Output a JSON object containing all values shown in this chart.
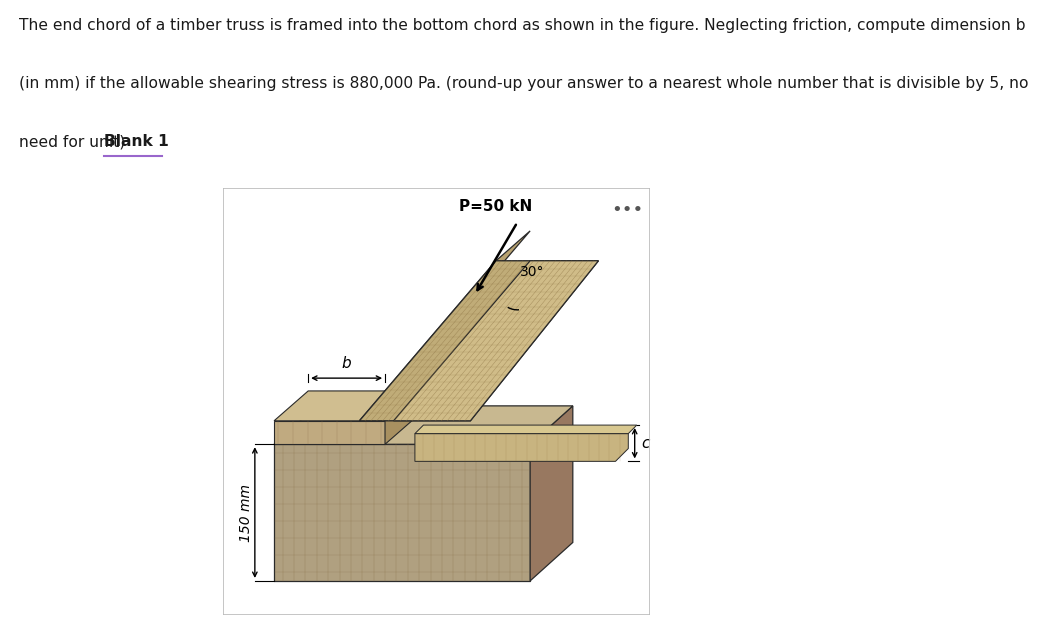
{
  "title_line1": "The end chord of a timber truss is framed into the bottom chord as shown in the figure. Neglecting friction, compute dimension b",
  "title_line2": "(in mm) if the allowable shearing stress is 880,000 Pa. (round-up your answer to a nearest whole number that is divisible by 5, no",
  "title_line3": "need for unit) ",
  "blank_label": "Blank 1",
  "bg_color": "#ffffff",
  "panel_bg": "#cfc8b8",
  "text_fontsize": 11.2,
  "dots_text": "•••",
  "P_label": "P=50 kN",
  "angle_label": "30°",
  "b_label": "b",
  "dim_label": "150 mm",
  "c_label": "c",
  "fig_width": 8.88,
  "fig_height": 6.37
}
